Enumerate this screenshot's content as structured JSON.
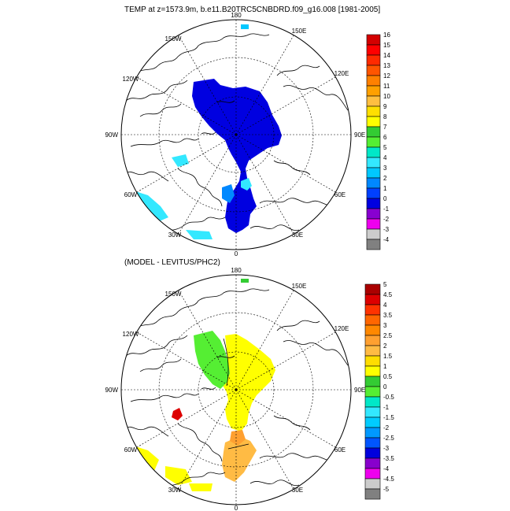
{
  "panels": [
    {
      "id": "temp",
      "title": "TEMP at z=1573.9m, b.e11.B20TRC5CNBDRD.f09_g16.008 [1981-2005]",
      "lon_labels": [
        "180",
        "150E",
        "120E",
        "90E",
        "60E",
        "30E",
        "0",
        "30W",
        "60W",
        "90W",
        "120W",
        "150W"
      ],
      "colorbar": {
        "labels": [
          "16",
          "15",
          "14",
          "13",
          "12",
          "11",
          "10",
          "9",
          "8",
          "7",
          "6",
          "5",
          "4",
          "3",
          "2",
          "1",
          "0",
          "-1",
          "-2",
          "-3",
          "-4"
        ],
        "colors": [
          "#d40000",
          "#ff0000",
          "#ff2a00",
          "#ff5500",
          "#ff8000",
          "#ffa000",
          "#ffbf40",
          "#ffdf00",
          "#ffff00",
          "#33cc33",
          "#55ee33",
          "#00e8c8",
          "#33e8ff",
          "#00c8ff",
          "#0088ff",
          "#0040ff",
          "#0000e0",
          "#8800d0",
          "#ee00ee",
          "#cccccc",
          "#808080"
        ]
      }
    },
    {
      "id": "diff",
      "title": "(MODEL - LEVITUS/PHC2)",
      "lon_labels": [
        "180",
        "150E",
        "120E",
        "90E",
        "60E",
        "30E",
        "0",
        "30W",
        "60W",
        "90W",
        "120W",
        "150W"
      ],
      "colorbar": {
        "labels": [
          "5",
          "4.5",
          "4",
          "3.5",
          "3",
          "2.5",
          "2",
          "1.5",
          "1",
          "0.5",
          "0",
          "-0.5",
          "-1",
          "-1.5",
          "-2",
          "-2.5",
          "-3",
          "-3.5",
          "-4",
          "-4.5",
          "-5"
        ],
        "colors": [
          "#aa0000",
          "#dd0000",
          "#ff3300",
          "#ff6600",
          "#ff8800",
          "#ffa030",
          "#ffbb44",
          "#ffdd00",
          "#ffff00",
          "#33cc33",
          "#55ee33",
          "#00e8c8",
          "#33e8ff",
          "#00ccff",
          "#0099ff",
          "#0055ff",
          "#0000dd",
          "#8800cc",
          "#ee00ee",
          "#cccccc",
          "#808080"
        ]
      }
    }
  ]
}
